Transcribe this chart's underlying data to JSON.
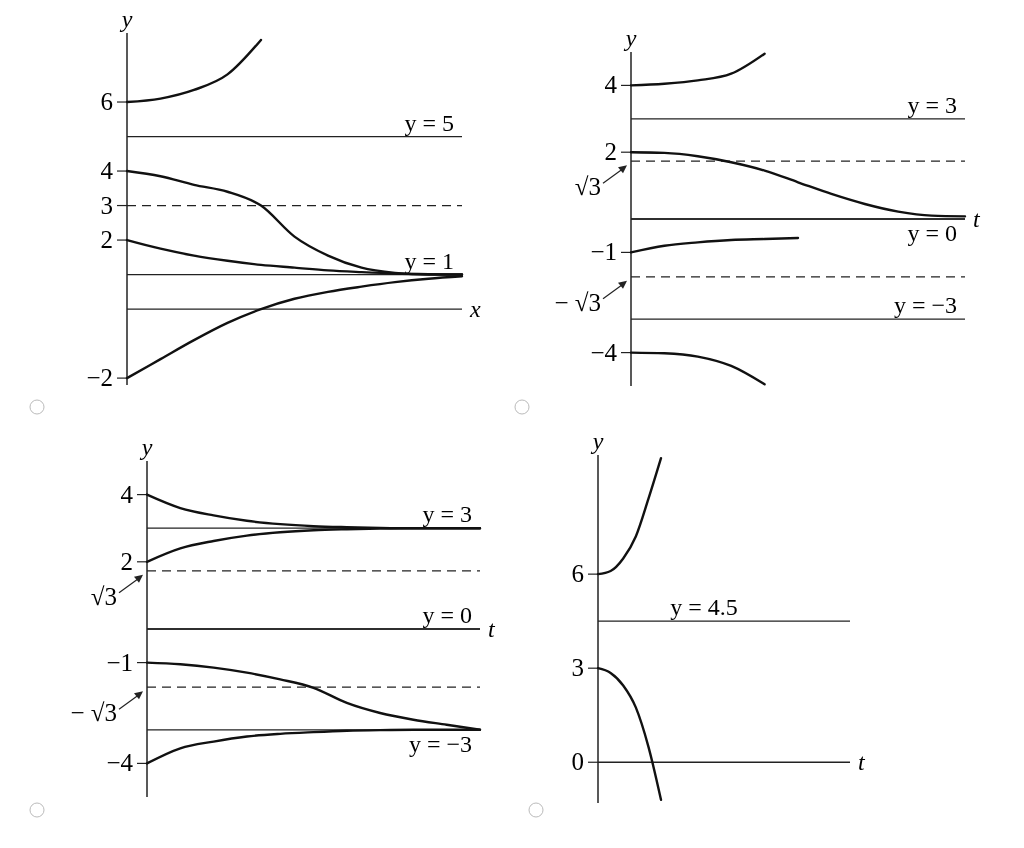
{
  "chart_data": [
    {
      "type": "line",
      "xlabel": "x",
      "ylabel": "y",
      "tick_labels": "y",
      "categories": [
        null,
        null,
        null,
        null,
        null,
        null,
        null,
        null,
        null,
        null,
        null
      ],
      "ylim": [
        -2.2,
        8
      ],
      "yticks": [
        6,
        4,
        3,
        2,
        -2
      ],
      "series": [
        {
          "color": "#111111",
          "values": [
            6,
            6.1,
            6.35,
            6.8,
            7.8,
            null,
            null,
            null,
            null,
            null,
            null
          ]
        },
        {
          "color": "#111111",
          "values": [
            4,
            3.85,
            3.6,
            3.4,
            3.0,
            2.1,
            1.55,
            1.2,
            1.05,
            1.0,
            1.0
          ]
        },
        {
          "color": "#111111",
          "values": [
            2,
            1.75,
            1.55,
            1.4,
            1.28,
            1.2,
            1.12,
            1.07,
            1.03,
            1.01,
            1.0
          ]
        },
        {
          "color": "#111111",
          "values": [
            -2,
            -1.45,
            -0.9,
            -0.4,
            0.0,
            0.3,
            0.5,
            0.65,
            0.78,
            0.88,
            0.95
          ]
        }
      ],
      "ref_lines": [
        {
          "axis": "y",
          "value": 5,
          "label": "y = 5",
          "line_style": "solid"
        },
        {
          "axis": "y",
          "value": 3,
          "label": null,
          "line_style": "dashed"
        },
        {
          "axis": "y",
          "value": 1,
          "label": "y = 1",
          "line_style": "solid"
        }
      ]
    },
    {
      "type": "line",
      "xlabel": "t",
      "ylabel": "y",
      "tick_labels": "y",
      "categories": [
        null,
        null,
        null,
        null,
        null,
        null,
        null,
        null,
        null,
        null,
        null
      ],
      "ylim": [
        -5,
        5
      ],
      "yticks": [
        4,
        2,
        -1,
        -4
      ],
      "series": [
        {
          "color": "#111111",
          "values": [
            4,
            4.05,
            4.15,
            4.35,
            4.95,
            null,
            null,
            null,
            null,
            null,
            null
          ]
        },
        {
          "color": "#111111",
          "values": [
            2,
            1.98,
            1.88,
            1.7,
            1.45,
            1.1,
            0.75,
            0.45,
            0.22,
            0.1,
            0.08
          ]
        },
        {
          "color": "#111111",
          "values": [
            -1,
            -0.8,
            -0.7,
            -0.63,
            -0.6,
            -0.57,
            null,
            null,
            null,
            null,
            null
          ]
        },
        {
          "color": "#111111",
          "values": [
            -4,
            -4.02,
            -4.12,
            -4.4,
            -4.95,
            null,
            null,
            null,
            null,
            null,
            null
          ]
        }
      ],
      "ref_lines": [
        {
          "axis": "y",
          "value": 3,
          "label": "y = 3",
          "line_style": "solid"
        },
        {
          "axis": "y",
          "value": 1.732,
          "label": null,
          "line_style": "dashed"
        },
        {
          "axis": "y",
          "value": 0,
          "label": "y = 0",
          "line_style": "solid"
        },
        {
          "axis": "y",
          "value": -1.732,
          "label": null,
          "line_style": "dashed"
        },
        {
          "axis": "y",
          "value": -3,
          "label": "y = −3",
          "line_style": "solid"
        }
      ],
      "annotations": [
        "√3",
        "− √3"
      ]
    },
    {
      "type": "line",
      "xlabel": "t",
      "ylabel": "y",
      "tick_labels": "y",
      "categories": [
        null,
        null,
        null,
        null,
        null,
        null,
        null,
        null,
        null,
        null,
        null
      ],
      "ylim": [
        -5,
        5
      ],
      "yticks": [
        4,
        2,
        -1,
        -4
      ],
      "series": [
        {
          "color": "#111111",
          "values": [
            4,
            3.6,
            3.38,
            3.22,
            3.12,
            3.06,
            3.03,
            3.01,
            3.0,
            3.0,
            3.0
          ]
        },
        {
          "color": "#111111",
          "values": [
            2,
            2.4,
            2.62,
            2.78,
            2.88,
            2.94,
            2.97,
            2.99,
            3.0,
            3.0,
            3.0
          ]
        },
        {
          "color": "#111111",
          "values": [
            -1,
            -1.05,
            -1.15,
            -1.3,
            -1.5,
            -1.75,
            -2.2,
            -2.5,
            -2.7,
            -2.85,
            -3.0
          ]
        },
        {
          "color": "#111111",
          "values": [
            -4,
            -3.55,
            -3.35,
            -3.2,
            -3.12,
            -3.07,
            -3.03,
            -3.01,
            -3.0,
            -3.0,
            -3.0
          ]
        }
      ],
      "ref_lines": [
        {
          "axis": "y",
          "value": 3,
          "label": "y = 3",
          "line_style": "solid"
        },
        {
          "axis": "y",
          "value": 1.732,
          "label": null,
          "line_style": "dashed"
        },
        {
          "axis": "y",
          "value": 0,
          "label": "y = 0",
          "line_style": "solid"
        },
        {
          "axis": "y",
          "value": -1.732,
          "label": null,
          "line_style": "dashed"
        },
        {
          "axis": "y",
          "value": -3,
          "label": "y = −3",
          "line_style": "solid"
        }
      ],
      "annotations": [
        "√3",
        "− √3"
      ]
    },
    {
      "type": "line",
      "xlabel": "t",
      "ylabel": "y",
      "tick_labels": "y",
      "categories": [
        null,
        null,
        null,
        null,
        null,
        null,
        null,
        null,
        null,
        null,
        null,
        null,
        null,
        null,
        null,
        null,
        null,
        null,
        null,
        null,
        null
      ],
      "ylim": [
        -1.3,
        9.8
      ],
      "yticks": [
        6,
        3,
        0
      ],
      "series": [
        {
          "color": "#111111",
          "values": [
            6,
            6.1,
            6.5,
            7.2,
            8.4,
            9.7,
            null,
            null,
            null,
            null,
            null,
            null,
            null,
            null,
            null,
            null,
            null,
            null,
            null,
            null,
            null
          ]
        },
        {
          "color": "#111111",
          "values": [
            3,
            2.85,
            2.45,
            1.75,
            0.5,
            -1.2,
            null,
            null,
            null,
            null,
            null,
            null,
            null,
            null,
            null,
            null,
            null,
            null,
            null,
            null,
            null
          ]
        }
      ],
      "ref_lines": [
        {
          "axis": "y",
          "value": 4.5,
          "label": "y = 4.5",
          "line_style": "solid"
        }
      ]
    }
  ]
}
